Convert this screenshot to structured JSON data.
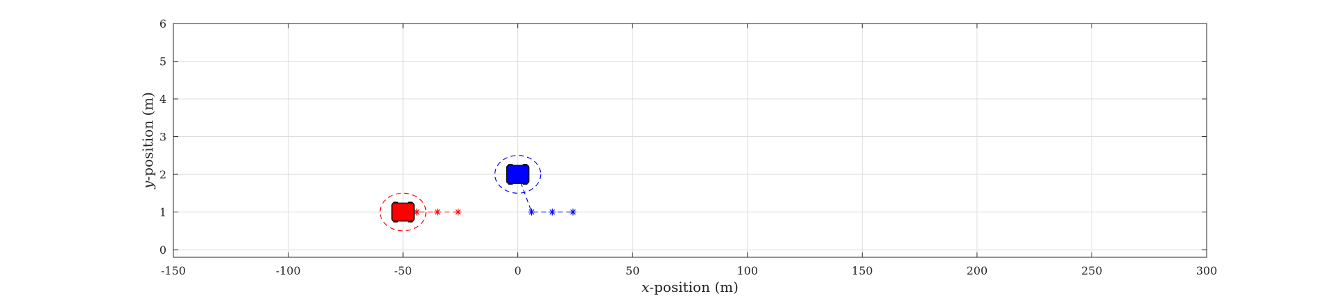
{
  "chart_data": {
    "type": "scatter",
    "title": "",
    "xlabel": {
      "var": "x",
      "rest": "-position (m)"
    },
    "ylabel": {
      "var": "y",
      "rest": "-position (m)"
    },
    "xlim": [
      -150,
      300
    ],
    "ylim": [
      -0.2,
      6
    ],
    "xticks": [
      -150,
      -100,
      -50,
      0,
      50,
      100,
      150,
      200,
      250,
      300
    ],
    "yticks": [
      0,
      1,
      2,
      3,
      4,
      5,
      6
    ],
    "grid": true,
    "legend": "none",
    "vehicles": [
      {
        "color": "#ff0000",
        "position": [
          -50,
          1
        ],
        "safety_radius_x": 10,
        "safety_radius_y": 0.5,
        "predicted_path": [
          [
            -50,
            1
          ],
          [
            -44,
            1
          ],
          [
            -35,
            1
          ],
          [
            -26,
            1
          ]
        ]
      },
      {
        "color": "#0000ff",
        "position": [
          0,
          2
        ],
        "safety_radius_x": 10,
        "safety_radius_y": 0.5,
        "predicted_path": [
          [
            0,
            2
          ],
          [
            6,
            1
          ],
          [
            15,
            1
          ],
          [
            24,
            1
          ]
        ]
      }
    ]
  }
}
